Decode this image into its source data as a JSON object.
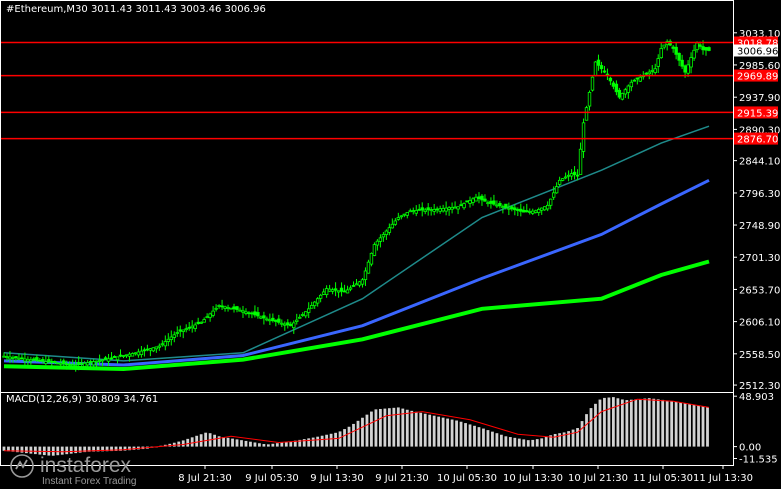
{
  "chart_data": {
    "type": "candlestick",
    "title": "#Ethereum,M30  3011.43 3011.43 3003.46 3006.96",
    "main_panel": {
      "ylim": [
        2505,
        3055
      ],
      "y_ticks": [
        "3033.10",
        "2985.60",
        "2937.90",
        "2890.30",
        "2844.10",
        "2796.30",
        "2748.90",
        "2701.30",
        "2653.70",
        "2606.10",
        "2558.50",
        "2512.30"
      ],
      "x_ticks": [
        "8 Jul 21:30",
        "9 Jul 05:30",
        "9 Jul 13:30",
        "9 Jul 21:30",
        "10 Jul 05:30",
        "10 Jul 13:30",
        "10 Jul 21:30",
        "11 Jul 05:30",
        "11 Jul 13:30"
      ],
      "price_path": [
        [
          0,
          2555
        ],
        [
          6,
          2548
        ],
        [
          12,
          2542
        ],
        [
          18,
          2552
        ],
        [
          22,
          2560
        ],
        [
          26,
          2570
        ],
        [
          29,
          2590
        ],
        [
          33,
          2605
        ],
        [
          36,
          2630
        ],
        [
          40,
          2622
        ],
        [
          44,
          2610
        ],
        [
          48,
          2600
        ],
        [
          51,
          2625
        ],
        [
          54,
          2655
        ],
        [
          57,
          2650
        ],
        [
          60,
          2668
        ],
        [
          62,
          2720
        ],
        [
          64,
          2740
        ],
        [
          66,
          2760
        ],
        [
          68,
          2770
        ],
        [
          72,
          2772
        ],
        [
          76,
          2776
        ],
        [
          79,
          2790
        ],
        [
          81,
          2782
        ],
        [
          84,
          2775
        ],
        [
          87,
          2768
        ],
        [
          89,
          2770
        ],
        [
          91,
          2778
        ],
        [
          93,
          2815
        ],
        [
          95,
          2825
        ],
        [
          96,
          2822
        ],
        [
          97,
          2900
        ],
        [
          99,
          2990
        ],
        [
          101,
          2970
        ],
        [
          103,
          2938
        ],
        [
          105,
          2960
        ],
        [
          107,
          2970
        ],
        [
          109,
          2980
        ],
        [
          110,
          3010
        ],
        [
          111,
          3020
        ],
        [
          112,
          3010
        ],
        [
          114,
          2975
        ],
        [
          116,
          3018
        ],
        [
          117,
          3008
        ],
        [
          118,
          3007
        ]
      ],
      "ma_fast": [
        [
          0,
          2560
        ],
        [
          20,
          2548
        ],
        [
          40,
          2560
        ],
        [
          60,
          2640
        ],
        [
          80,
          2760
        ],
        [
          100,
          2830
        ],
        [
          110,
          2870
        ],
        [
          118,
          2895
        ]
      ],
      "ma_mid": [
        [
          0,
          2548
        ],
        [
          20,
          2542
        ],
        [
          40,
          2556
        ],
        [
          60,
          2600
        ],
        [
          80,
          2670
        ],
        [
          100,
          2735
        ],
        [
          110,
          2780
        ],
        [
          118,
          2815
        ]
      ],
      "ma_slow": [
        [
          0,
          2540
        ],
        [
          20,
          2536
        ],
        [
          40,
          2550
        ],
        [
          60,
          2580
        ],
        [
          80,
          2625
        ],
        [
          100,
          2640
        ],
        [
          110,
          2675
        ],
        [
          118,
          2695
        ]
      ],
      "levels": [
        {
          "value": 3018.78,
          "label": "3018.78"
        },
        {
          "value": 2969.89,
          "label": "2969.89"
        },
        {
          "value": 2915.39,
          "label": "2915.39"
        },
        {
          "value": 2876.7,
          "label": "2876.70"
        }
      ],
      "current_price": {
        "value": 3006.96,
        "label": "3006.96"
      }
    },
    "macd_panel": {
      "title": "MACD(12,26,9) 30.809 34.761",
      "ylim": [
        -13,
        52
      ],
      "y_ticks": [
        "48.903",
        "0.00",
        "-11.535"
      ],
      "hist": [
        [
          0,
          -4
        ],
        [
          8,
          -9
        ],
        [
          14,
          -5
        ],
        [
          20,
          -4
        ],
        [
          24,
          -2
        ],
        [
          28,
          3
        ],
        [
          30,
          6
        ],
        [
          32,
          10
        ],
        [
          34,
          14
        ],
        [
          36,
          10
        ],
        [
          40,
          6
        ],
        [
          44,
          2
        ],
        [
          48,
          5
        ],
        [
          52,
          9
        ],
        [
          56,
          14
        ],
        [
          58,
          20
        ],
        [
          60,
          28
        ],
        [
          62,
          36
        ],
        [
          64,
          37
        ],
        [
          66,
          38
        ],
        [
          68,
          35
        ],
        [
          72,
          30
        ],
        [
          76,
          25
        ],
        [
          80,
          18
        ],
        [
          84,
          10
        ],
        [
          88,
          6
        ],
        [
          90,
          8
        ],
        [
          92,
          12
        ],
        [
          94,
          14
        ],
        [
          96,
          18
        ],
        [
          98,
          36
        ],
        [
          100,
          47
        ],
        [
          102,
          48
        ],
        [
          104,
          45
        ],
        [
          108,
          47
        ],
        [
          112,
          44
        ],
        [
          116,
          40
        ],
        [
          118,
          38
        ]
      ],
      "signal": [
        [
          0,
          -4
        ],
        [
          10,
          -5
        ],
        [
          20,
          -3
        ],
        [
          30,
          2
        ],
        [
          38,
          10
        ],
        [
          46,
          4
        ],
        [
          56,
          8
        ],
        [
          64,
          30
        ],
        [
          70,
          34
        ],
        [
          78,
          26
        ],
        [
          86,
          12
        ],
        [
          92,
          9
        ],
        [
          96,
          14
        ],
        [
          100,
          34
        ],
        [
          106,
          46
        ],
        [
          112,
          44
        ],
        [
          118,
          38
        ]
      ]
    },
    "colors": {
      "background": "#000000",
      "axis": "#ffffff",
      "candle": "#00ff00",
      "ma_fast": "#1e8a8a",
      "ma_mid": "#3a66ff",
      "ma_slow": "#00ff00",
      "level_line": "#ff0000",
      "macd_hist": "#d3d3d3",
      "macd_signal": "#ff0000"
    },
    "watermark": {
      "brand": "instaforex",
      "tagline": "Instant Forex Trading"
    }
  }
}
